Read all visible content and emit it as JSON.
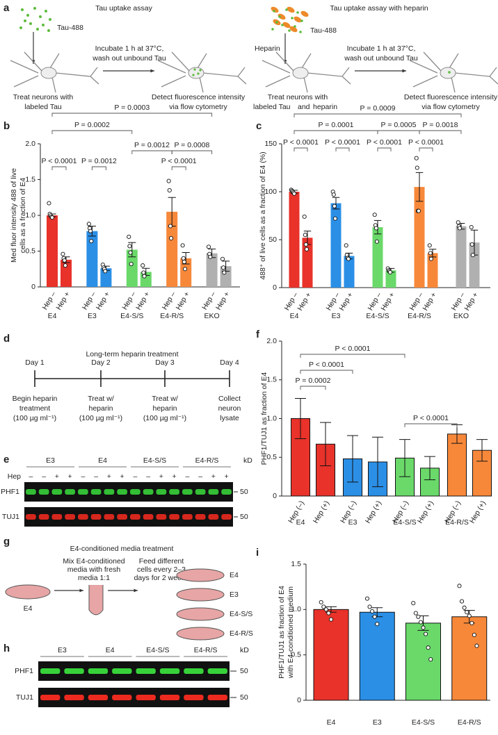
{
  "panel_labels": [
    "a",
    "b",
    "c",
    "d",
    "e",
    "f",
    "g",
    "h",
    "i"
  ],
  "panel_a": {
    "left": {
      "title": "Tau uptake assay",
      "tau_label": "Tau-488",
      "step": [
        "Incubate 1 h at 37°C,",
        "wash out unbound Tau"
      ],
      "treat": [
        "Treat neurons with",
        "labeled Tau"
      ],
      "detect": [
        "Detect fluorescence intensity",
        "via flow cytometry"
      ]
    },
    "right": {
      "title": "Tau uptake assay with heparin",
      "heparin_label": "Heparin",
      "tau_label": "Tau-488",
      "step": [
        "Incubate 1 h at 37°C,",
        "wash out unbound Tau"
      ],
      "treat": [
        "Treat neurons with",
        "labeled Tau",
        "and",
        "heparin"
      ],
      "detect": [
        "Detect fluorescence intensity",
        "via flow cytometry"
      ]
    }
  },
  "panel_d": {
    "title": "Long-term heparin treatment",
    "days": [
      "Day 1",
      "Day 2",
      "Day 3",
      "Day 4"
    ],
    "notes": [
      [
        "Begin heparin",
        "treatment",
        "(100 µg ml⁻¹)"
      ],
      [
        "Treat w/",
        "heparin",
        "(100 µg ml⁻¹)"
      ],
      [
        "Treat w/",
        "heparin",
        "(100 µg ml⁻¹)"
      ],
      [
        "Collect",
        "neuron",
        "lysate"
      ]
    ]
  },
  "panel_e": {
    "lane_groups": [
      "E3",
      "E4",
      "E4-S/S",
      "E4-R/S"
    ],
    "hep_label": "Hep",
    "hep_signs": [
      "–",
      "–",
      "+",
      "+",
      "–",
      "–",
      "+",
      "+",
      "–",
      "–",
      "+",
      "+",
      "–",
      "–",
      "+",
      "+"
    ],
    "unit": "kD",
    "bands": [
      {
        "name": "PHF1",
        "mw": "50"
      },
      {
        "name": "TUJ1",
        "mw": "50"
      }
    ]
  },
  "panel_g": {
    "title": "E4-conditioned media treatment",
    "dish": "E4",
    "mix": [
      "Mix E4-conditioned",
      "media with fresh",
      "media 1:1"
    ],
    "feed": [
      "Feed different",
      "cells every 2–3",
      "days for 2 weeks"
    ],
    "dishes": [
      "E4",
      "E3",
      "E4-S/S",
      "E4-R/S"
    ]
  },
  "panel_h": {
    "lane_groups": [
      "E3",
      "E4",
      "E4-S/S",
      "E4-R/S"
    ],
    "unit": "kD",
    "bands": [
      {
        "name": "PHF1",
        "mw": "50"
      },
      {
        "name": "TUJ1",
        "mw": "50"
      }
    ]
  },
  "chart_data": [
    {
      "type": "bar",
      "ylabel": [
        "Med fluor intensity 488 of live",
        "cells as a fraction of E4"
      ],
      "ylim": [
        0,
        2
      ],
      "yticks": [
        0,
        0.5,
        {
          "value": 1,
          "label": "1.0"
        },
        1.5,
        {
          "value": 2,
          "label": "2.0"
        }
      ],
      "groups": [
        {
          "name": "E4",
          "color": "#e8322a",
          "bars": [
            {
              "label": "Hep –",
              "value": 1.0,
              "error": 0.02,
              "points": [
                1.17,
                1.02,
                1.0,
                0.98,
                0.97
              ]
            },
            {
              "label": "Hep +",
              "value": 0.38,
              "error": 0.04,
              "points": [
                0.46,
                0.4,
                0.37,
                0.3
              ]
            }
          ]
        },
        {
          "name": "E3",
          "color": "#2b8fe6",
          "bars": [
            {
              "label": "Hep –",
              "value": 0.78,
              "error": 0.07,
              "points": [
                0.88,
                0.82,
                0.78,
                0.64
              ]
            },
            {
              "label": "Hep +",
              "value": 0.26,
              "error": 0.03,
              "points": [
                0.31,
                0.27,
                0.25,
                0.22
              ]
            }
          ]
        },
        {
          "name": "E4-S/S",
          "color": "#6ad96a",
          "bars": [
            {
              "label": "Hep –",
              "value": 0.52,
              "error": 0.1,
              "points": [
                0.7,
                0.57,
                0.48,
                0.32
              ]
            },
            {
              "label": "Hep +",
              "value": 0.21,
              "error": 0.05,
              "points": [
                0.3,
                0.2,
                0.15
              ]
            }
          ]
        },
        {
          "name": "E4-R/S",
          "color": "#f7883a",
          "bars": [
            {
              "label": "Hep –",
              "value": 1.05,
              "error": 0.2,
              "points": [
                1.48,
                1.35,
                0.85,
                0.68
              ]
            },
            {
              "label": "Hep +",
              "value": 0.4,
              "error": 0.08,
              "points": [
                0.58,
                0.4,
                0.35,
                0.25
              ]
            }
          ]
        },
        {
          "name": "EKO",
          "color": "#b0b0b0",
          "bars": [
            {
              "label": "Hep –",
              "value": 0.47,
              "error": 0.06,
              "points": [
                0.56,
                0.46,
                0.42
              ]
            },
            {
              "label": "Hep +",
              "value": 0.29,
              "error": 0.07,
              "points": [
                0.39,
                0.27,
                0.2
              ]
            }
          ]
        }
      ],
      "annotations": [
        "P = 0.0003",
        "P = 0.0002",
        "P = 0.0012",
        "P = 0.0008",
        "P < 0.0001",
        "P = 0.0012",
        "P < 0.0001"
      ]
    },
    {
      "type": "bar",
      "ylabel": [
        "488⁺ of live cells as a fraction of E4 (%)"
      ],
      "ylim": [
        0,
        150
      ],
      "yticks": [
        0,
        50,
        100,
        150
      ],
      "groups": [
        {
          "name": "E4",
          "color": "#e8322a",
          "bars": [
            {
              "label": "Hep –",
              "value": 100,
              "error": 1.5,
              "points": [
                102,
                101,
                100,
                99,
                98
              ]
            },
            {
              "label": "Hep +",
              "value": 52,
              "error": 7,
              "points": [
                74,
                55,
                45,
                40
              ]
            }
          ]
        },
        {
          "name": "E3",
          "color": "#2b8fe6",
          "bars": [
            {
              "label": "Hep –",
              "value": 88,
              "error": 6,
              "points": [
                100,
                97,
                85,
                72
              ]
            },
            {
              "label": "Hep +",
              "value": 33,
              "error": 3,
              "points": [
                44,
                34,
                31,
                30
              ]
            }
          ]
        },
        {
          "name": "E4-S/S",
          "color": "#6ad96a",
          "bars": [
            {
              "label": "Hep –",
              "value": 63,
              "error": 7,
              "points": [
                76,
                65,
                62,
                48
              ]
            },
            {
              "label": "Hep +",
              "value": 18,
              "error": 2,
              "points": [
                20,
                18,
                17,
                16
              ]
            }
          ]
        },
        {
          "name": "E4-R/S",
          "color": "#f7883a",
          "bars": [
            {
              "label": "Hep –",
              "value": 105,
              "error": 15,
              "points": [
                135,
                125,
                80,
                80
              ]
            },
            {
              "label": "Hep +",
              "value": 36,
              "error": 4,
              "points": [
                44,
                36,
                30
              ]
            }
          ]
        },
        {
          "name": "EKO",
          "color": "#b0b0b0",
          "bars": [
            {
              "label": "Hep –",
              "value": 64,
              "error": 3,
              "points": [
                68,
                64,
                62
              ]
            },
            {
              "label": "Hep +",
              "value": 47,
              "error": 13,
              "points": [
                63,
                45,
                34
              ]
            }
          ]
        }
      ],
      "annotations": [
        "P = 0.0009",
        "P = 0.0001",
        "P = 0.0005",
        "P = 0.0018",
        "P < 0.0001",
        "P < 0.0001",
        "P < 0.0001",
        "P < 0.0001"
      ]
    },
    {
      "type": "bar",
      "ylabel": [
        "PHF1/TUJ1 as fraction of E4"
      ],
      "outline": true,
      "ylim": [
        0,
        2
      ],
      "yticks": [
        0,
        0.5,
        {
          "value": 1,
          "label": "1.0"
        },
        1.5,
        {
          "value": 2,
          "label": "2.0"
        }
      ],
      "groups": [
        {
          "name": "E4",
          "color": "#e8322a",
          "bars": [
            {
              "label": "Hep (–)",
              "value": 1.0,
              "error": 0.26
            },
            {
              "label": "Hep (+)",
              "value": 0.67,
              "error": 0.28
            }
          ]
        },
        {
          "name": "E3",
          "color": "#2b8fe6",
          "bars": [
            {
              "label": "Hep (–)",
              "value": 0.48,
              "error": 0.3
            },
            {
              "label": "Hep (+)",
              "value": 0.44,
              "error": 0.32
            }
          ]
        },
        {
          "name": "E4-S/S",
          "color": "#6ad96a",
          "bars": [
            {
              "label": "Hep (–)",
              "value": 0.49,
              "error": 0.24
            },
            {
              "label": "Hep (+)",
              "value": 0.36,
              "error": 0.15
            }
          ]
        },
        {
          "name": "E4-R/S",
          "color": "#f7883a",
          "bars": [
            {
              "label": "Hep (–)",
              "value": 0.8,
              "error": 0.12
            },
            {
              "label": "Hep (+)",
              "value": 0.59,
              "error": 0.14
            }
          ]
        }
      ],
      "annotations": [
        "P < 0.0001",
        "P < 0.0001",
        "P = 0.0002",
        "P < 0.0001"
      ]
    },
    {
      "type": "bar",
      "ylabel": [
        "PHF1/TUJ1 as fraction of E4",
        "with E4-conditioned medium"
      ],
      "outline": true,
      "ylim": [
        0,
        1.5
      ],
      "yticks": [
        0,
        0.5,
        {
          "value": 1,
          "label": "1.0"
        },
        1.5
      ],
      "groups": [
        {
          "name": "E4",
          "color": "#e8322a",
          "bars": [
            {
              "value": 1.0,
              "error": 0.03,
              "points": [
                1.08,
                1.03,
                1.0,
                0.96,
                0.89
              ]
            }
          ]
        },
        {
          "name": "E3",
          "color": "#2b8fe6",
          "bars": [
            {
              "value": 0.97,
              "error": 0.05,
              "points": [
                1.12,
                1.03,
                0.98,
                0.92,
                0.84
              ]
            }
          ]
        },
        {
          "name": "E4-S/S",
          "color": "#6ad96a",
          "bars": [
            {
              "value": 0.85,
              "error": 0.08,
              "points": [
                1.07,
                0.96,
                0.92,
                0.86,
                0.8,
                0.73,
                0.58,
                0.45
              ]
            }
          ]
        },
        {
          "name": "E4-R/S",
          "color": "#f7883a",
          "bars": [
            {
              "value": 0.92,
              "error": 0.07,
              "points": [
                1.26,
                1.09,
                1.02,
                0.97,
                0.93,
                0.85,
                0.72,
                0.6
              ]
            }
          ]
        }
      ]
    }
  ]
}
